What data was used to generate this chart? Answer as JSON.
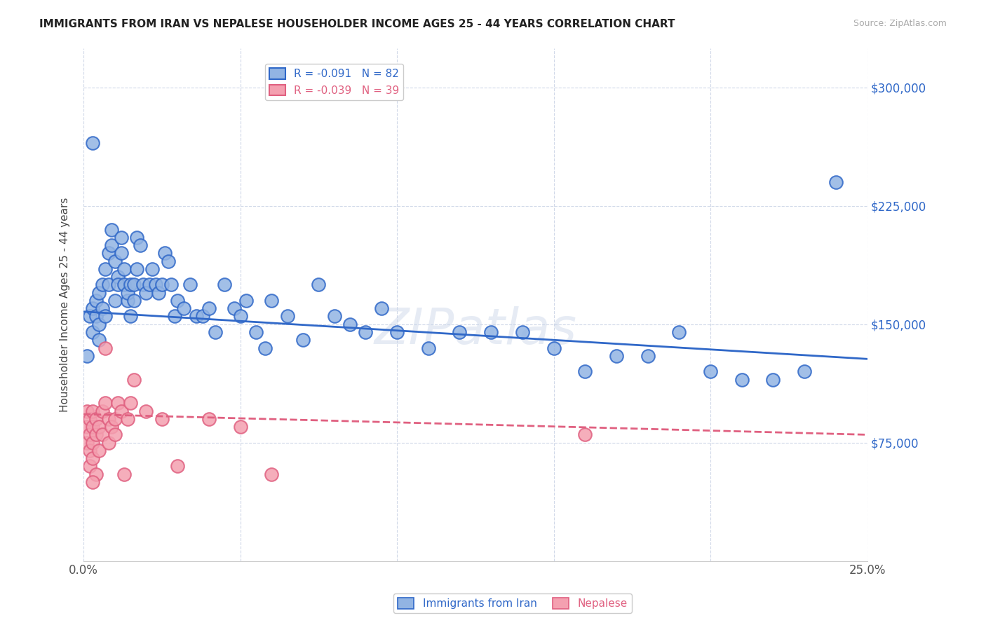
{
  "title": "IMMIGRANTS FROM IRAN VS NEPALESE HOUSEHOLDER INCOME AGES 25 - 44 YEARS CORRELATION CHART",
  "source": "Source: ZipAtlas.com",
  "ylabel": "Householder Income Ages 25 - 44 years",
  "ytick_values": [
    300000,
    225000,
    150000,
    75000
  ],
  "ymin": 0,
  "ymax": 325000,
  "xmin": 0.0,
  "xmax": 0.25,
  "legend_iran": "R = -0.091   N = 82",
  "legend_nepal": "R = -0.039   N = 39",
  "iran_color": "#92b4e3",
  "nepal_color": "#f4a0b0",
  "iran_line_color": "#3068c8",
  "nepal_line_color": "#e06080",
  "watermark": "ZIPatlas",
  "iran_scatter_x": [
    0.001,
    0.002,
    0.003,
    0.003,
    0.004,
    0.004,
    0.005,
    0.005,
    0.005,
    0.006,
    0.006,
    0.007,
    0.007,
    0.008,
    0.008,
    0.009,
    0.009,
    0.01,
    0.01,
    0.011,
    0.011,
    0.012,
    0.012,
    0.013,
    0.013,
    0.014,
    0.014,
    0.015,
    0.015,
    0.016,
    0.016,
    0.017,
    0.017,
    0.018,
    0.019,
    0.02,
    0.021,
    0.022,
    0.023,
    0.024,
    0.025,
    0.026,
    0.027,
    0.028,
    0.029,
    0.03,
    0.032,
    0.034,
    0.036,
    0.038,
    0.04,
    0.042,
    0.045,
    0.048,
    0.05,
    0.052,
    0.055,
    0.058,
    0.06,
    0.065,
    0.07,
    0.075,
    0.08,
    0.085,
    0.09,
    0.095,
    0.1,
    0.11,
    0.12,
    0.13,
    0.14,
    0.15,
    0.16,
    0.17,
    0.18,
    0.19,
    0.2,
    0.21,
    0.22,
    0.23,
    0.003,
    0.24
  ],
  "iran_scatter_y": [
    130000,
    155000,
    160000,
    145000,
    165000,
    155000,
    150000,
    140000,
    170000,
    160000,
    175000,
    185000,
    155000,
    195000,
    175000,
    210000,
    200000,
    190000,
    165000,
    180000,
    175000,
    205000,
    195000,
    175000,
    185000,
    165000,
    170000,
    155000,
    175000,
    165000,
    175000,
    185000,
    205000,
    200000,
    175000,
    170000,
    175000,
    185000,
    175000,
    170000,
    175000,
    195000,
    190000,
    175000,
    155000,
    165000,
    160000,
    175000,
    155000,
    155000,
    160000,
    145000,
    175000,
    160000,
    155000,
    165000,
    145000,
    135000,
    165000,
    155000,
    140000,
    175000,
    155000,
    150000,
    145000,
    160000,
    145000,
    135000,
    145000,
    145000,
    145000,
    135000,
    120000,
    130000,
    130000,
    145000,
    120000,
    115000,
    115000,
    120000,
    265000,
    240000
  ],
  "nepal_scatter_x": [
    0.001,
    0.001,
    0.001,
    0.002,
    0.002,
    0.002,
    0.002,
    0.003,
    0.003,
    0.003,
    0.003,
    0.004,
    0.004,
    0.004,
    0.005,
    0.005,
    0.006,
    0.006,
    0.007,
    0.007,
    0.008,
    0.008,
    0.009,
    0.01,
    0.01,
    0.011,
    0.012,
    0.013,
    0.014,
    0.015,
    0.016,
    0.02,
    0.025,
    0.03,
    0.04,
    0.05,
    0.06,
    0.16,
    0.003
  ],
  "nepal_scatter_y": [
    95000,
    85000,
    75000,
    90000,
    80000,
    70000,
    60000,
    95000,
    85000,
    75000,
    65000,
    90000,
    80000,
    55000,
    85000,
    70000,
    95000,
    80000,
    135000,
    100000,
    90000,
    75000,
    85000,
    90000,
    80000,
    100000,
    95000,
    55000,
    90000,
    100000,
    115000,
    95000,
    90000,
    60000,
    90000,
    85000,
    55000,
    80000,
    50000
  ],
  "iran_trend_x": [
    0.0,
    0.25
  ],
  "iran_trend_y": [
    158000,
    128000
  ],
  "nepal_trend_x": [
    0.0,
    0.25
  ],
  "nepal_trend_y": [
    93000,
    80000
  ],
  "grid_color": "#d0d8e8",
  "background_color": "#ffffff"
}
